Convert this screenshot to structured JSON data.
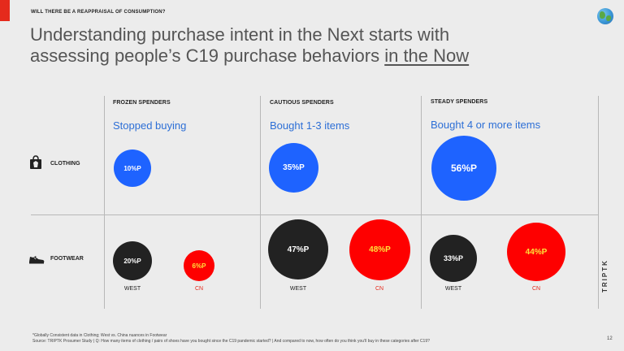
{
  "header": {
    "kicker": "WILL THERE BE A REAPPRAISAL OF CONSUMPTION?",
    "title_part1": "Understanding purchase intent in the Next starts with",
    "title_part2": "assessing people’s C19 purchase behaviors ",
    "title_underlined": "in the Now",
    "icon": "globe-icon"
  },
  "segments": [
    {
      "title": "FROZEN SPENDERS",
      "subtitle": "Stopped buying"
    },
    {
      "title": "CAUTIOUS SPENDERS",
      "subtitle": "Bought 1-3 items"
    },
    {
      "title": "STEADY SPENDERS",
      "subtitle": "Bought 4 or more items"
    }
  ],
  "rows": {
    "clothing": {
      "label": "CLOTHING",
      "icon": "clothing-bag-icon"
    },
    "footwear": {
      "label": "FOOTWEAR",
      "icon": "sneaker-icon"
    }
  },
  "clothing_values": [
    "10%P",
    "35%P",
    "56%P"
  ],
  "footwear_values": {
    "frozen": {
      "west": "20%P",
      "cn": "6%P"
    },
    "cautious": {
      "west": "47%P",
      "cn": "48%P"
    },
    "steady": {
      "west": "33%P",
      "cn": "44%P"
    }
  },
  "region_labels": {
    "west": "WEST",
    "cn": "CN"
  },
  "colors": {
    "blue": "#1e63ff",
    "black": "#222222",
    "red": "#fe0000",
    "red_text": "#ffe03a",
    "accent": "#e52a1c"
  },
  "footnote_line1": "*Globally Consistent data in Clothing; West vs. China nuances in Footwear",
  "footnote_line2": "Source: TRIPTK Prosumer Study | Q: How many items of clothing / pairs of shoes have you bought since the C19 pandemic started? | And compared to now, how often do you think you’ll buy in these categories after C19?",
  "page_number": "12",
  "brand": "TRIPTK"
}
